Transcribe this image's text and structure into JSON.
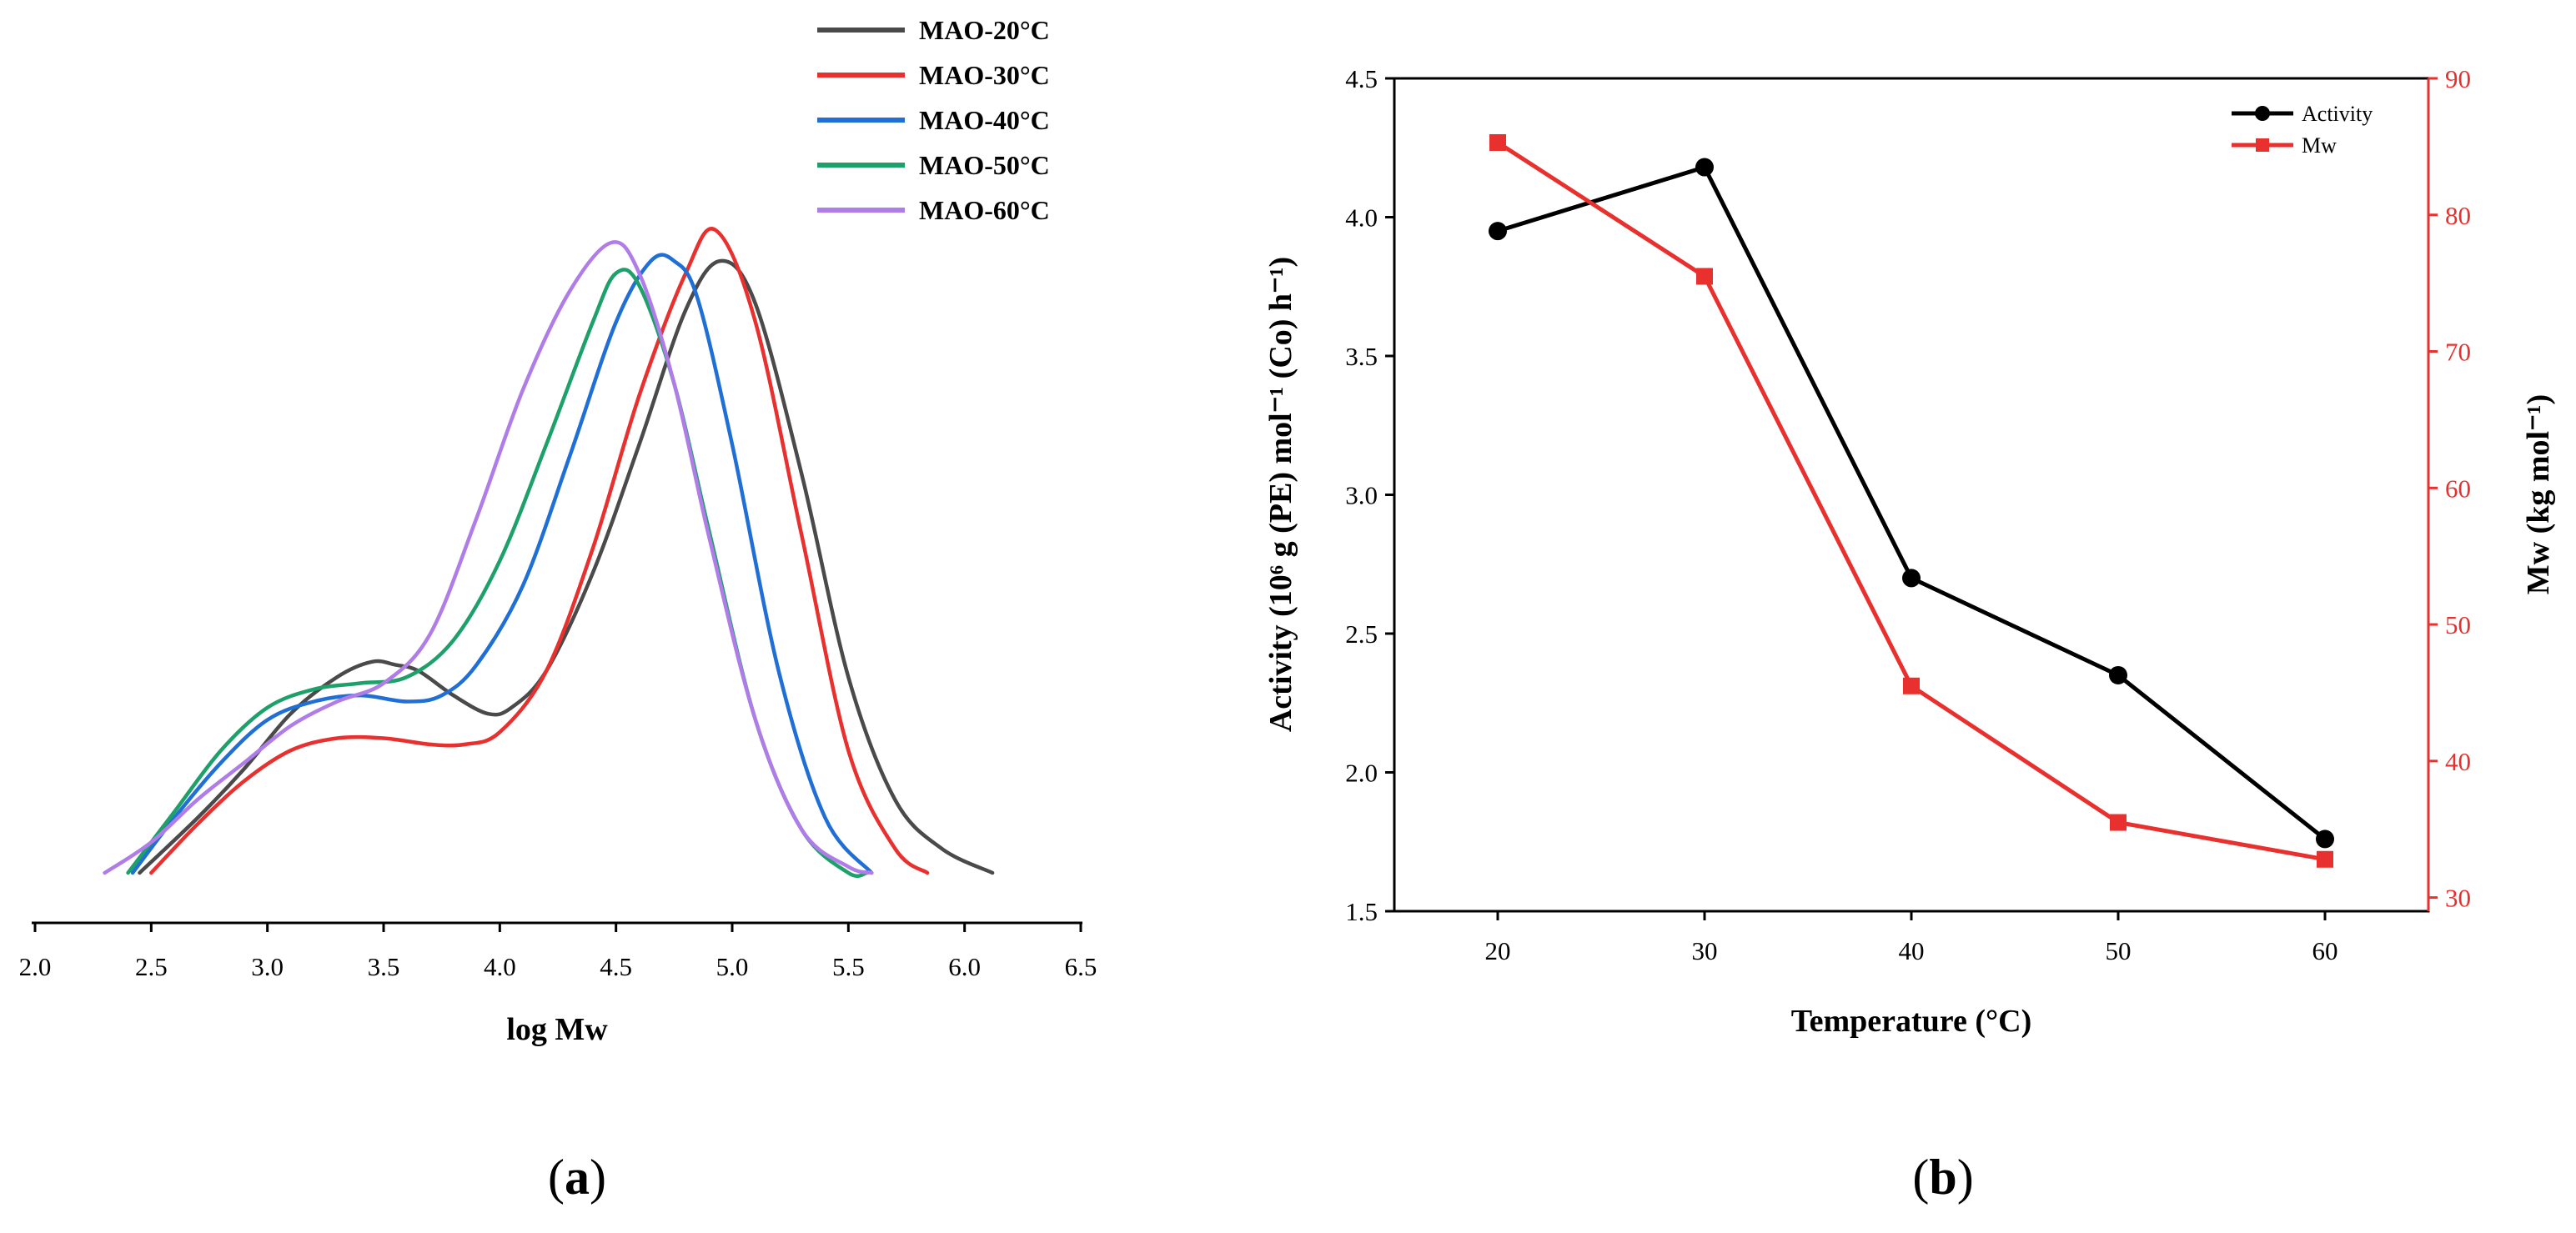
{
  "chart_data": [
    {
      "type": "line",
      "panel_label": "a",
      "title": "",
      "xlabel": "log Mw",
      "ylabel": "",
      "xlim": [
        2.0,
        6.5
      ],
      "x_ticks": [
        "2.0",
        "2.5",
        "3.0",
        "3.5",
        "4.0",
        "4.5",
        "5.0",
        "5.5",
        "6.0",
        "6.5"
      ],
      "y_axis_visible": false,
      "legend_position": "top-right",
      "series": [
        {
          "name": "MAO-20°C",
          "color": "#4a4a4a",
          "x": [
            2.45,
            2.7,
            2.9,
            3.1,
            3.3,
            3.45,
            3.55,
            3.65,
            3.8,
            3.95,
            4.05,
            4.2,
            4.4,
            4.6,
            4.8,
            4.95,
            5.1,
            5.3,
            5.5,
            5.7,
            5.9,
            6.12
          ],
          "y": [
            0.0,
            0.09,
            0.17,
            0.26,
            0.32,
            0.345,
            0.34,
            0.33,
            0.29,
            0.26,
            0.27,
            0.33,
            0.49,
            0.7,
            0.92,
            1.0,
            0.93,
            0.65,
            0.32,
            0.12,
            0.04,
            0.0
          ]
        },
        {
          "name": "MAO-30°C",
          "color": "#e8302e",
          "x": [
            2.5,
            2.7,
            2.9,
            3.1,
            3.3,
            3.5,
            3.7,
            3.85,
            4.0,
            4.2,
            4.4,
            4.6,
            4.8,
            4.93,
            5.1,
            5.3,
            5.5,
            5.7,
            5.84
          ],
          "y": [
            0.0,
            0.08,
            0.15,
            0.2,
            0.22,
            0.22,
            0.21,
            0.21,
            0.23,
            0.33,
            0.53,
            0.78,
            0.98,
            1.05,
            0.9,
            0.55,
            0.2,
            0.04,
            0.0
          ]
        },
        {
          "name": "MAO-40°C",
          "color": "#1f6fd6",
          "x": [
            2.42,
            2.6,
            2.8,
            3.0,
            3.2,
            3.4,
            3.6,
            3.75,
            3.9,
            4.1,
            4.3,
            4.5,
            4.65,
            4.75,
            4.85,
            5.0,
            5.2,
            5.4,
            5.6
          ],
          "y": [
            0.0,
            0.09,
            0.18,
            0.25,
            0.28,
            0.29,
            0.28,
            0.29,
            0.34,
            0.47,
            0.68,
            0.9,
            1.0,
            1.0,
            0.94,
            0.7,
            0.33,
            0.09,
            0.0
          ]
        },
        {
          "name": "MAO-50°C",
          "color": "#1ea06a",
          "x": [
            2.4,
            2.6,
            2.8,
            3.0,
            3.2,
            3.4,
            3.6,
            3.8,
            4.0,
            4.2,
            4.4,
            4.5,
            4.6,
            4.75,
            4.9,
            5.1,
            5.3,
            5.5,
            5.58
          ],
          "y": [
            0.0,
            0.1,
            0.2,
            0.27,
            0.3,
            0.31,
            0.32,
            0.38,
            0.51,
            0.7,
            0.9,
            0.98,
            0.96,
            0.8,
            0.56,
            0.25,
            0.07,
            0.0,
            0.0
          ]
        },
        {
          "name": "MAO-60°C",
          "color": "#b07de8",
          "x": [
            2.3,
            2.5,
            2.7,
            2.9,
            3.1,
            3.3,
            3.5,
            3.7,
            3.9,
            4.1,
            4.3,
            4.48,
            4.6,
            4.75,
            4.9,
            5.1,
            5.3,
            5.5,
            5.6
          ],
          "y": [
            0.0,
            0.05,
            0.12,
            0.18,
            0.24,
            0.28,
            0.31,
            0.39,
            0.58,
            0.79,
            0.95,
            1.03,
            0.98,
            0.8,
            0.55,
            0.25,
            0.07,
            0.01,
            0.0
          ]
        }
      ]
    },
    {
      "type": "line",
      "panel_label": "b",
      "title": "",
      "xlabel": "Temperature (°C)",
      "ylabel": "Activity (10⁶ g (PE) mol⁻¹ (Co) h⁻¹)",
      "y2label": "Mw (kg mol⁻¹)",
      "x": [
        20,
        30,
        40,
        50,
        60
      ],
      "xlim": [
        15,
        65
      ],
      "ylim": [
        1.5,
        4.5
      ],
      "y2lim": [
        29,
        90
      ],
      "x_ticks": [
        "20",
        "30",
        "40",
        "50",
        "60"
      ],
      "y_ticks": [
        "1.5",
        "2.0",
        "2.5",
        "3.0",
        "3.5",
        "4.0",
        "4.5"
      ],
      "y2_ticks": [
        "30",
        "40",
        "50",
        "60",
        "70",
        "80",
        "90"
      ],
      "legend_position": "top-right",
      "series": [
        {
          "name": "Activity",
          "axis": "left",
          "marker": "circle",
          "color": "#000000",
          "values": [
            3.95,
            4.18,
            2.7,
            2.35,
            1.76
          ]
        },
        {
          "name": "Mw",
          "axis": "right",
          "marker": "square",
          "color": "#e8302e",
          "values": [
            85.3,
            75.5,
            45.5,
            35.5,
            32.8
          ]
        }
      ]
    }
  ]
}
